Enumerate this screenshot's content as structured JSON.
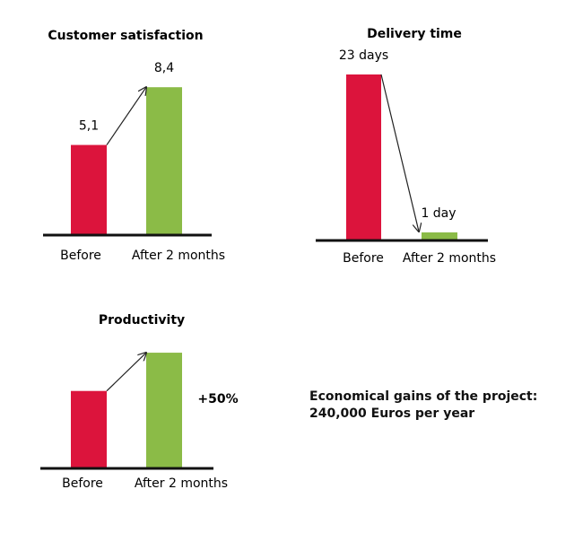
{
  "chart_data": [
    {
      "type": "bar",
      "title": "Customer satisfaction",
      "categories": [
        "Before",
        "After 2 months"
      ],
      "values": [
        5.1,
        8.4
      ],
      "value_labels": [
        "5,1",
        "8,4"
      ],
      "ylim": [
        0,
        10
      ],
      "colors": [
        "#dc143c",
        "#8bbb47"
      ],
      "arrow": "rising",
      "grid": false
    },
    {
      "type": "bar",
      "title": "Delivery time",
      "categories": [
        "Before",
        "After 2 months"
      ],
      "values": [
        23,
        1
      ],
      "value_labels": [
        "23 days",
        "1 day"
      ],
      "ylim": [
        0,
        25
      ],
      "colors": [
        "#dc143c",
        "#8bbb47"
      ],
      "arrow": "falling",
      "grid": false
    },
    {
      "type": "bar",
      "title": "Productivity",
      "categories": [
        "Before",
        "After 2 months"
      ],
      "values": [
        100,
        150
      ],
      "change_label": "+50%",
      "ylim": [
        0,
        170
      ],
      "colors": [
        "#dc143c",
        "#8bbb47"
      ],
      "arrow": "rising",
      "grid": false
    }
  ],
  "gains": {
    "line1": "Economical gains of the project:",
    "line2": "240,000 Euros per year"
  }
}
